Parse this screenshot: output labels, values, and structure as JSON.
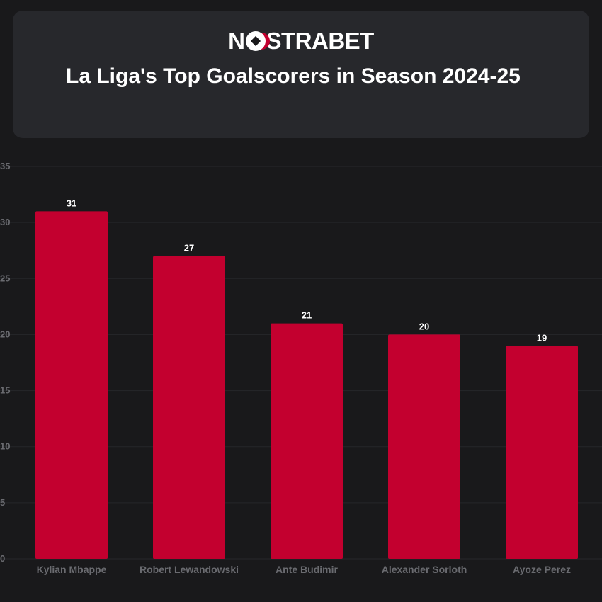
{
  "brand": {
    "logo_left": "N",
    "logo_right": "STRABET"
  },
  "chart_data": {
    "type": "bar",
    "title": "La Liga's Top Goalscorers in Season 2024-25",
    "categories": [
      "Kylian Mbappe",
      "Robert Lewandowski",
      "Ante Budimir",
      "Alexander Sorloth",
      "Ayoze Perez"
    ],
    "values": [
      31,
      27,
      21,
      20,
      19
    ],
    "ylim": [
      0,
      35
    ],
    "yticks": [
      0,
      5,
      10,
      15,
      20,
      25,
      30,
      35
    ],
    "xlabel": "",
    "ylabel": "",
    "grid": true,
    "colors": {
      "bar": "#c3002f",
      "label": "#ffffff",
      "tick": "#6a6b70"
    }
  }
}
